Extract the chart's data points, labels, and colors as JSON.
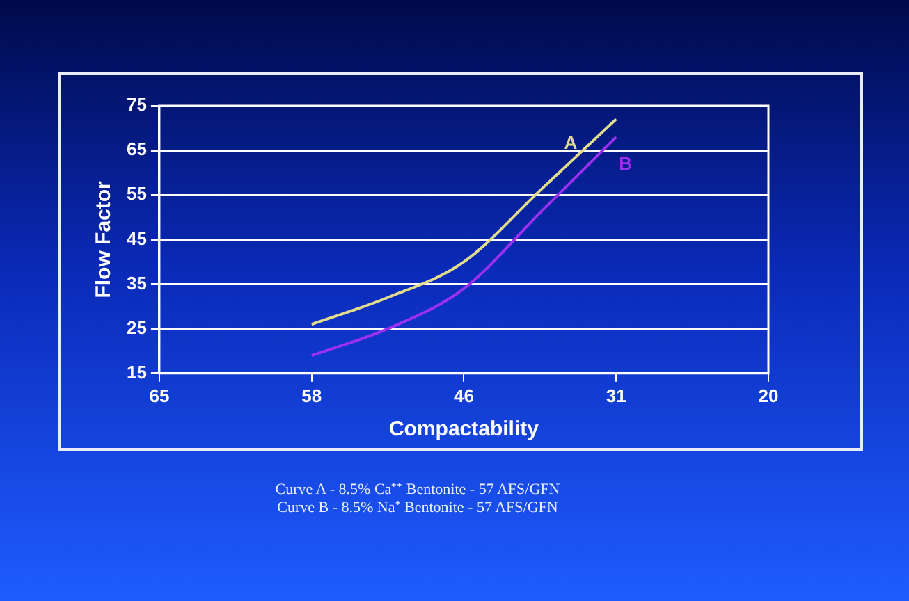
{
  "chart_data": {
    "type": "line",
    "xlabel": "Compactability",
    "ylabel": "Flow Factor",
    "categories": [
      "65",
      null,
      "58",
      null,
      "46",
      null,
      "31",
      null,
      "20"
    ],
    "series": [
      {
        "name": "A",
        "color": "#e0dc8c",
        "values": [
          null,
          null,
          26,
          32,
          40,
          56,
          72,
          null,
          null
        ]
      },
      {
        "name": "B",
        "color": "#9b30f0",
        "values": [
          null,
          null,
          19,
          25,
          34,
          51,
          68,
          null,
          null
        ]
      }
    ],
    "ylim": [
      15,
      75
    ],
    "yticks": [
      15,
      25,
      35,
      45,
      55,
      65,
      75
    ],
    "grid": "y",
    "legend": false,
    "marker": "none",
    "line_style": "solid",
    "annotations": [
      "Curve A - 8.5% Ca⁺⁺ Bentonite - 57 AFS/GFN",
      "Curve B - 8.5% Na⁺ Bentonite - 57 AFS/GFN"
    ]
  }
}
